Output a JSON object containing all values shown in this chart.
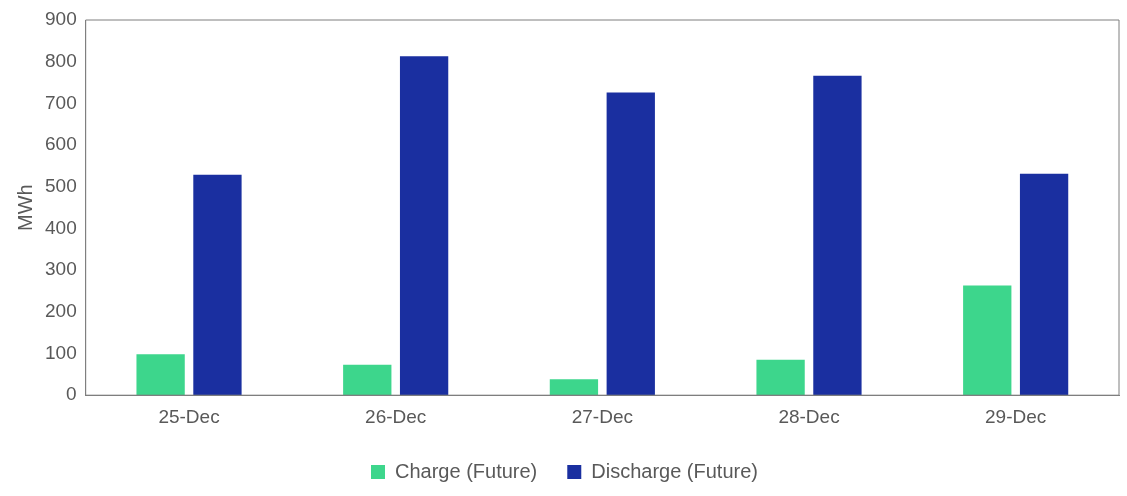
{
  "chart_data": {
    "type": "bar",
    "ylabel": "MWh",
    "categories": [
      "25-Dec",
      "26-Dec",
      "27-Dec",
      "28-Dec",
      "29-Dec"
    ],
    "series": [
      {
        "name": "Charge (Future)",
        "color": "#3dd68c",
        "values": [
          98,
          73,
          38,
          85,
          263
        ]
      },
      {
        "name": "Discharge (Future)",
        "color": "#1a2fa0",
        "values": [
          529,
          813,
          726,
          766,
          531
        ]
      }
    ],
    "ylim": [
      0,
      900
    ],
    "yticks": [
      0,
      100,
      200,
      300,
      400,
      500,
      600,
      700,
      800,
      900
    ],
    "grid": false,
    "legend": "bottom"
  }
}
